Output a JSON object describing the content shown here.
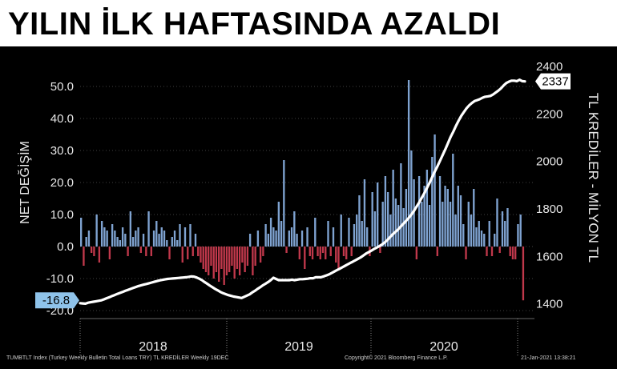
{
  "title": "YILIN İLK HAFTASINDA AZALDI",
  "footer": {
    "source": "TUMBTLT Index (Turkey Weekly Bulletin Total Loans TRY) TL KREDİLER  Weekly 19DEC",
    "copyright": "Copyright© 2021 Bloomberg Finance L.P.",
    "timestamp": "21-Jan-2021 13:38:21"
  },
  "chart_data": {
    "type": "bar+line",
    "left_axis": {
      "label": "NET DEĞİŞİM",
      "ticks": [
        "50.0",
        "40.0",
        "30.0",
        "20.0",
        "10.0",
        "0.0",
        "-10.0",
        "-20.0"
      ],
      "ylim": [
        -22,
        57
      ]
    },
    "right_axis": {
      "label": "TL KREDİLER - MİLYON TL",
      "ticks": [
        "2400",
        "2200",
        "2000",
        "1800",
        "1600",
        "1400"
      ],
      "ylim": [
        1345,
        2410
      ]
    },
    "x_labels": [
      "2018",
      "2019",
      "2020"
    ],
    "last_bar_label": "-16.8",
    "last_line_label": "2337",
    "colors": {
      "positive": "#7fa3d1",
      "negative": "#c0384b",
      "line": "#ffffff",
      "bar_label_bg": "#8fc3ea",
      "line_label_bg": "#ffffff"
    },
    "bars": [
      9,
      -6,
      3,
      5,
      -2,
      -3,
      10,
      -5,
      8,
      6,
      5,
      -4,
      7,
      5,
      3,
      2,
      6,
      4,
      -3,
      11,
      3,
      5,
      6,
      -2,
      4,
      -3,
      11,
      -3,
      5,
      8,
      4,
      6,
      5,
      2,
      -4,
      3,
      5,
      2,
      7,
      -5,
      6,
      -4,
      7,
      -3,
      4,
      -3,
      -5,
      -7,
      -8,
      -9,
      -6,
      -10,
      -8,
      -11,
      -7,
      -12,
      -9,
      -8,
      -6,
      -10,
      -7,
      -9,
      -5,
      -8,
      -6,
      4,
      -9,
      -6,
      5,
      -5,
      -3,
      7,
      4,
      9,
      6,
      5,
      14,
      8,
      27,
      -2,
      5,
      6,
      11,
      4,
      -4,
      5,
      -7,
      6,
      -3,
      -4,
      9,
      -3,
      -4,
      -2,
      -4,
      8,
      -3,
      6,
      -5,
      -7,
      10,
      -3,
      -4,
      9,
      -3,
      7,
      10,
      16,
      8,
      21,
      6,
      -3,
      17,
      11,
      20,
      -2,
      14,
      22,
      17,
      10,
      24,
      15,
      13,
      26,
      12,
      18,
      52,
      30,
      21,
      -4,
      22,
      14,
      19,
      24,
      13,
      28,
      35,
      -3,
      22,
      14,
      19,
      18,
      14,
      29,
      10,
      19,
      16,
      7,
      -4,
      14,
      10,
      18,
      6,
      8,
      5,
      4,
      -3,
      8,
      -3,
      4,
      15,
      -2,
      11,
      8,
      12,
      -3,
      -4,
      -4,
      7,
      10,
      -16.8
    ],
    "line": [
      1403,
      1402,
      1401,
      1405,
      1407,
      1409,
      1411,
      1413,
      1415,
      1419,
      1424,
      1428,
      1433,
      1437,
      1442,
      1446,
      1450,
      1455,
      1459,
      1463,
      1467,
      1471,
      1475,
      1478,
      1481,
      1484,
      1487,
      1490,
      1493,
      1496,
      1499,
      1501,
      1503,
      1505,
      1506,
      1507,
      1508,
      1509,
      1510,
      1511,
      1512,
      1514,
      1516,
      1515,
      1511,
      1506,
      1500,
      1492,
      1485,
      1477,
      1470,
      1463,
      1457,
      1450,
      1445,
      1441,
      1437,
      1434,
      1431,
      1429,
      1427,
      1425,
      1430,
      1435,
      1440,
      1448,
      1455,
      1463,
      1470,
      1478,
      1485,
      1492,
      1500,
      1510,
      1505,
      1500,
      1500,
      1500,
      1500,
      1500,
      1502,
      1500,
      1502,
      1504,
      1504,
      1505,
      1506,
      1508,
      1508,
      1512,
      1512,
      1512,
      1516,
      1520,
      1524,
      1530,
      1536,
      1542,
      1548,
      1554,
      1560,
      1566,
      1572,
      1578,
      1584,
      1590,
      1596,
      1604,
      1612,
      1618,
      1624,
      1631,
      1637,
      1643,
      1650,
      1658,
      1668,
      1680,
      1692,
      1702,
      1712,
      1724,
      1736,
      1748,
      1760,
      1774,
      1790,
      1808,
      1826,
      1846,
      1866,
      1888,
      1910,
      1934,
      1958,
      1980,
      2004,
      2028,
      2052,
      2078,
      2104,
      2126,
      2150,
      2172,
      2192,
      2208,
      2224,
      2236,
      2246,
      2254,
      2258,
      2262,
      2268,
      2272,
      2274,
      2276,
      2282,
      2290,
      2298,
      2308,
      2320,
      2330,
      2336,
      2340,
      2340,
      2338,
      2344,
      2338,
      2337
    ]
  }
}
